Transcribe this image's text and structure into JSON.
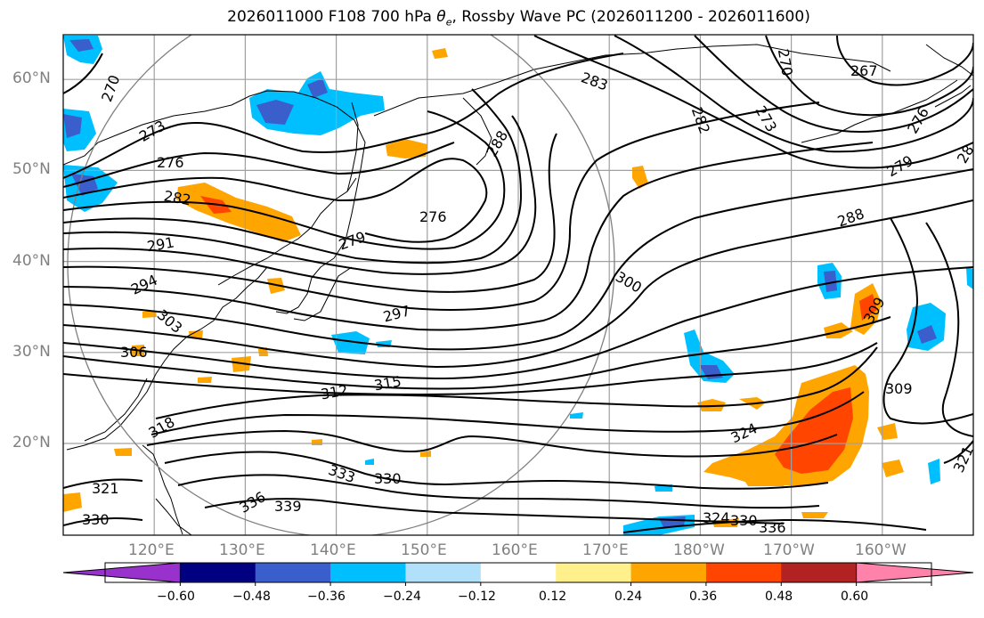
{
  "title": {
    "prefix": "2026011000 F108 700 hPa ",
    "theta_symbol": "θ",
    "theta_sub": "e",
    "suffix": ", Rossby Wave PC (2026011200 - 2026011600)"
  },
  "map": {
    "projection": "PlateCarree",
    "lon_range": [
      "110°E",
      "210°E (150°W)"
    ],
    "lat_range": [
      "10°N",
      "65°N"
    ],
    "grid": true,
    "lon_labels": [
      "120°E",
      "130°E",
      "140°E",
      "150°E",
      "160°E",
      "170°E",
      "180°W",
      "170°W",
      "160°W"
    ],
    "lat_labels": [
      "20°N",
      "30°N",
      "40°N",
      "50°N",
      "60°N"
    ],
    "contour_field": "700 hPa theta-e",
    "contour_labels": [
      "270",
      "273",
      "276",
      "282",
      "291",
      "294",
      "303",
      "306",
      "318",
      "321",
      "330",
      "336",
      "339",
      "333",
      "330",
      "312",
      "315",
      "297",
      "279",
      "276",
      "288",
      "283",
      "282",
      "273",
      "270",
      "267",
      "276",
      "279",
      "28",
      "288",
      "300",
      "309",
      "309",
      "324",
      "321",
      "324",
      "330",
      "336"
    ],
    "shading_field": "Rossby Wave PC"
  },
  "colorbar": {
    "tick_labels": [
      "−0.60",
      "−0.48",
      "−0.36",
      "−0.24",
      "−0.12",
      "0.12",
      "0.24",
      "0.36",
      "0.48",
      "0.60"
    ],
    "colors": [
      "#9932cc",
      "#000080",
      "#3a5fcd",
      "#00bfff",
      "#b0e0fa",
      "#ffffff",
      "#fff08c",
      "#ffa500",
      "#ff4500",
      "#b22222",
      "#ff82ab"
    ],
    "extend": "both"
  }
}
